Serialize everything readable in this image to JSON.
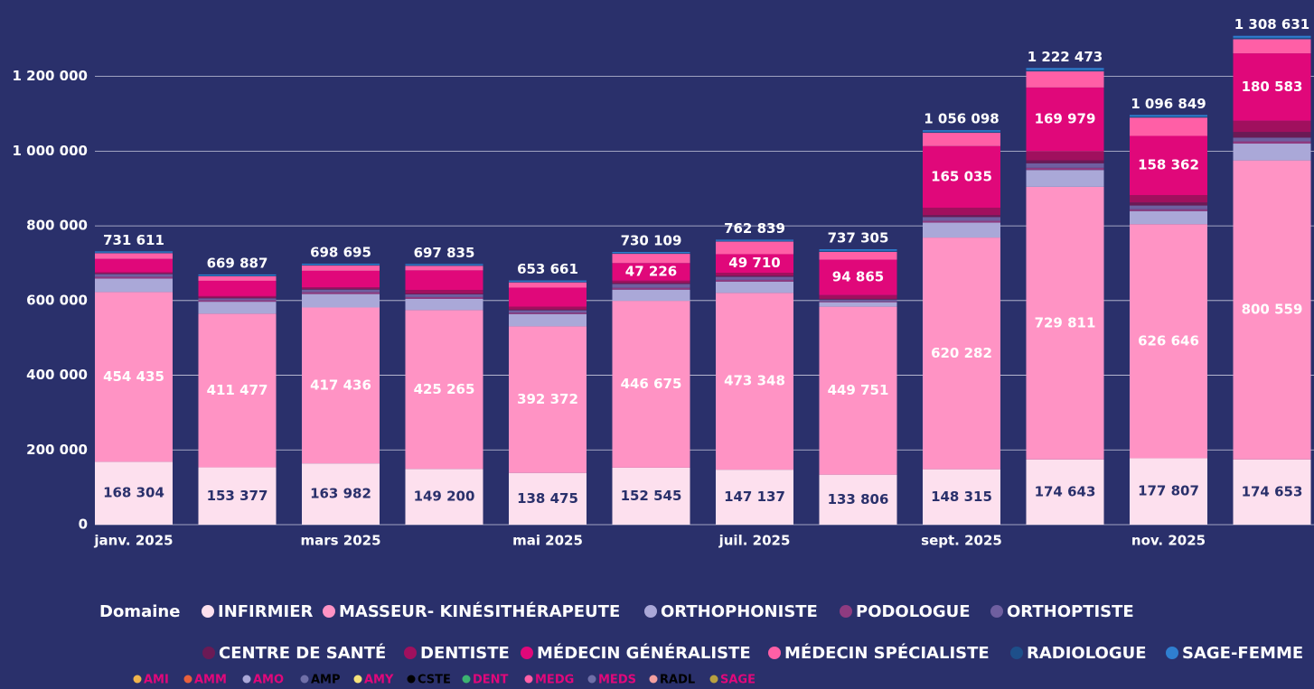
{
  "chart_data": {
    "type": "stacked_bar",
    "categories": [
      "janv. 2025",
      null,
      "mars 2025",
      null,
      "mai 2025",
      null,
      "juil. 2025",
      null,
      "sept. 2025",
      null,
      "nov. 2025",
      null
    ],
    "ylim": [
      0,
      1320000
    ],
    "yticks": [
      0,
      {
        "value": 200000,
        "label": "200 000"
      },
      {
        "value": 400000,
        "label": "400 000"
      },
      {
        "value": 600000,
        "label": "600 000"
      },
      {
        "value": 800000,
        "label": "800 000"
      },
      {
        "value": 1000000,
        "label": "1 000 000"
      },
      {
        "value": 1200000,
        "label": "1 200 000"
      }
    ],
    "grid": true,
    "legend_title": "Domaine",
    "series": [
      {
        "name": "INFIRMIER",
        "color": "#fde0ee",
        "values": [
          168304,
          153377,
          163982,
          149200,
          138475,
          152545,
          147137,
          133806,
          148315,
          174643,
          177807,
          174653
        ],
        "value_labels": [
          "168 304",
          "153 377",
          "163 982",
          "149 200",
          "138 475",
          "152 545",
          "147 137",
          "133 806",
          "148 315",
          "174 643",
          "177 807",
          "174 653"
        ]
      },
      {
        "name": "MASSEUR- KINÉSITHÉRAPEUTE",
        "color": "#ff93c4",
        "values": [
          454435,
          411477,
          417436,
          425265,
          392372,
          446675,
          473348,
          449751,
          620282,
          729811,
          626646,
          800559
        ],
        "value_labels": [
          "454 435",
          "411 477",
          "417 436",
          "425 265",
          "392 372",
          "446 675",
          "473 348",
          "449 751",
          "620 282",
          "729 811",
          "626 646",
          "800 559"
        ]
      },
      {
        "name": "ORTHOPHONISTE",
        "color": "#aaa8d8",
        "values": [
          36000,
          32000,
          36000,
          30000,
          33000,
          30000,
          30000,
          12000,
          40000,
          45000,
          35000,
          45000
        ]
      },
      {
        "name": "PODOLOGUE",
        "color": "#8e3b80",
        "values": [
          5000,
          4000,
          5000,
          5000,
          4000,
          5000,
          5000,
          2000,
          5000,
          6000,
          5000,
          6000
        ]
      },
      {
        "name": "ORTHOPTISTE",
        "color": "#6f5fa0",
        "values": [
          7000,
          5000,
          7000,
          7000,
          6000,
          10000,
          8000,
          5000,
          10000,
          12000,
          10000,
          10000
        ]
      },
      {
        "name": "CENTRE DE SANTÉ",
        "color": "#6b1a55",
        "values": [
          2000,
          2000,
          2000,
          2000,
          2000,
          3000,
          3000,
          2000,
          5000,
          8000,
          8000,
          15000
        ]
      },
      {
        "name": "DENTISTE",
        "color": "#a0105e",
        "values": [
          3000,
          4000,
          4000,
          10000,
          8000,
          6000,
          8000,
          10000,
          20000,
          25000,
          20000,
          30000
        ]
      },
      {
        "name": "MÉDECIN GÉNÉRALISTE",
        "color": "#e0087a",
        "values": [
          35872,
          41033,
          44277,
          52370,
          50814,
          47226,
          49710,
          94865,
          165035,
          169979,
          158362,
          180583
        ],
        "value_labels": [
          null,
          null,
          null,
          null,
          null,
          "47 226",
          "49 710",
          "94 865",
          "165 035",
          "169 979",
          "158 362",
          "180 583"
        ]
      },
      {
        "name": "MÉDECIN SPÉCIALISTE",
        "color": "#ff5fa6",
        "values": [
          15000,
          12000,
          14000,
          12000,
          14000,
          24663,
          33644,
          20883,
          35466,
          43040,
          49034,
          37836
        ]
      },
      {
        "name": "RADIOLOGUE",
        "color": "#1d4f8a",
        "values": [
          2000,
          2000,
          2000,
          2000,
          2000,
          2000,
          2000,
          3000,
          3000,
          4000,
          3000,
          4000
        ]
      },
      {
        "name": "SAGE-FEMME",
        "color": "#2f7fd0",
        "values": [
          3000,
          3000,
          3000,
          3000,
          3000,
          3000,
          3000,
          4000,
          4000,
          5000,
          4000,
          5000
        ]
      }
    ],
    "totals": [
      731611,
      669887,
      698695,
      697835,
      653661,
      730109,
      762839,
      737305,
      1056098,
      1222473,
      1096849,
      1308631
    ],
    "total_labels": [
      "731 611",
      "669 887",
      "698 695",
      "697 835",
      "653 661",
      "730 109",
      "762 839",
      "737 305",
      "1 056 098",
      "1 222 473",
      "1 096 849",
      "1 308 631"
    ],
    "legend2": [
      {
        "name": "AMI",
        "color": "#f0b44c",
        "text_color": "#e0087a"
      },
      {
        "name": "AMM",
        "color": "#e8603c",
        "text_color": "#e0087a"
      },
      {
        "name": "AMO",
        "color": "#aaa8d8",
        "text_color": "#e0087a"
      },
      {
        "name": "AMP",
        "color": "#6f6fa8",
        "text_color": "#000000"
      },
      {
        "name": "AMY",
        "color": "#f6e27a",
        "text_color": "#e0087a"
      },
      {
        "name": "CSTE",
        "color": "#000000",
        "text_color": "#000000"
      },
      {
        "name": "DENT",
        "color": "#3cb371",
        "text_color": "#e0087a"
      },
      {
        "name": "MEDG",
        "color": "#ff5fa6",
        "text_color": "#e0087a"
      },
      {
        "name": "MEDS",
        "color": "#6f6fa8",
        "text_color": "#e0087a"
      },
      {
        "name": "RADL",
        "color": "#f4a0a0",
        "text_color": "#000000"
      },
      {
        "name": "SAGE",
        "color": "#b8a040",
        "text_color": "#e0087a"
      }
    ]
  }
}
